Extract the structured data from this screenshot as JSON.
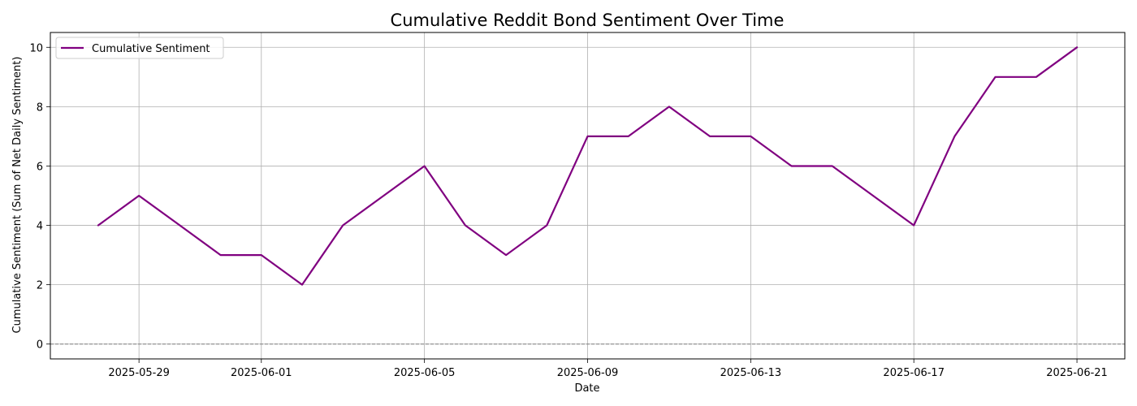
{
  "chart_data": {
    "type": "line",
    "title": "Cumulative Reddit Bond Sentiment Over Time",
    "xlabel": "Date",
    "ylabel": "Cumulative Sentiment (Sum of Net Daily Sentiment)",
    "xlim": [
      "2025-05-26T19:50",
      "2025-06-22T04:10"
    ],
    "ylim": [
      -0.5,
      10.5
    ],
    "x_ticks": [
      "2025-05-29",
      "2025-06-01",
      "2025-06-05",
      "2025-06-09",
      "2025-06-13",
      "2025-06-17",
      "2025-06-21"
    ],
    "y_ticks": [
      0,
      2,
      4,
      6,
      8,
      10
    ],
    "grid": true,
    "legend_position": "upper-left",
    "reference_line": {
      "y": 0,
      "color": "#808080",
      "style": "dashed"
    },
    "series": [
      {
        "name": "Cumulative Sentiment",
        "color": "#800080",
        "x": [
          "2025-05-28",
          "2025-05-29",
          "2025-05-30",
          "2025-05-31",
          "2025-06-01",
          "2025-06-02",
          "2025-06-03",
          "2025-06-04",
          "2025-06-05",
          "2025-06-06",
          "2025-06-07",
          "2025-06-08",
          "2025-06-09",
          "2025-06-10",
          "2025-06-11",
          "2025-06-12",
          "2025-06-13",
          "2025-06-14",
          "2025-06-15",
          "2025-06-16",
          "2025-06-17",
          "2025-06-18",
          "2025-06-19",
          "2025-06-20",
          "2025-06-21"
        ],
        "values": [
          4,
          5,
          4,
          3,
          3,
          2,
          4,
          5,
          6,
          4,
          3,
          4,
          7,
          7,
          8,
          7,
          7,
          6,
          6,
          5,
          4,
          7,
          9,
          9,
          10
        ]
      }
    ]
  }
}
